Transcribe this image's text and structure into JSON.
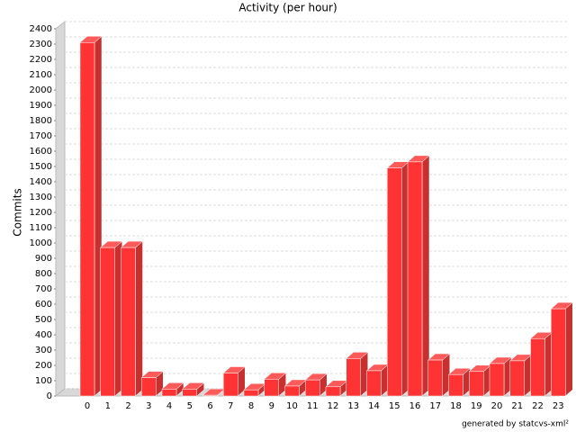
{
  "chart_data": {
    "type": "bar",
    "title": "Activity (per hour)",
    "y_label": "Commits",
    "footer": "generated by statcvs-xml²",
    "categories": [
      "0",
      "1",
      "2",
      "3",
      "4",
      "5",
      "6",
      "7",
      "8",
      "9",
      "10",
      "11",
      "12",
      "13",
      "14",
      "15",
      "16",
      "17",
      "18",
      "19",
      "20",
      "21",
      "22",
      "23"
    ],
    "values": [
      2310,
      970,
      970,
      120,
      45,
      45,
      5,
      150,
      40,
      110,
      65,
      105,
      60,
      245,
      165,
      1490,
      1530,
      235,
      140,
      160,
      212,
      230,
      375,
      570
    ],
    "color": "#ff3333",
    "ylim": [
      0,
      2400
    ],
    "yticks": [
      0,
      100,
      200,
      300,
      400,
      500,
      600,
      700,
      800,
      900,
      1000,
      1100,
      1200,
      1300,
      1400,
      1500,
      1600,
      1700,
      1800,
      1900,
      2000,
      2100,
      2200,
      2300,
      2400
    ],
    "grid": true
  }
}
